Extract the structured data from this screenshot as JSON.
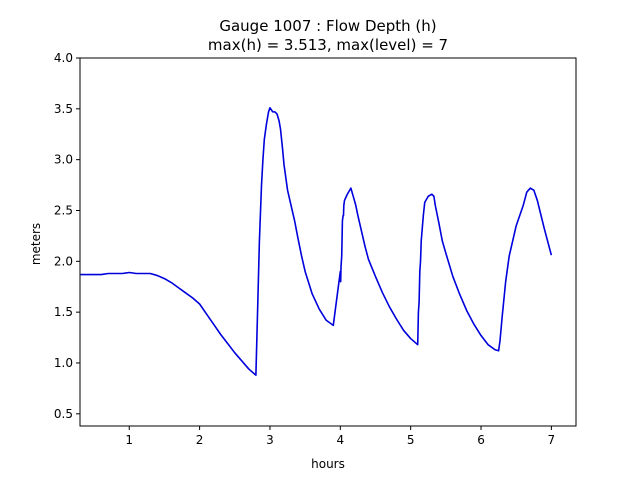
{
  "chart_data": {
    "type": "line",
    "title_lines": [
      "Gauge 1007 : Flow Depth (h)",
      "max(h) =   3.513,    max(level) = 7"
    ],
    "xlabel": "hours",
    "ylabel": "meters",
    "xlim": [
      0.3,
      7.35
    ],
    "ylim": [
      0.38,
      4.0
    ],
    "xticks": [
      1,
      2,
      3,
      4,
      5,
      6,
      7
    ],
    "yticks": [
      0.5,
      1.0,
      1.5,
      2.0,
      2.5,
      3.0,
      3.5,
      4.0
    ],
    "ytick_labels": [
      "0.5",
      "1.0",
      "1.5",
      "2.0",
      "2.5",
      "3.0",
      "3.5",
      "4.0"
    ],
    "grid": false,
    "colors": {
      "series": "#0000dd"
    },
    "series": [
      {
        "x": [
          0.3,
          0.4,
          0.5,
          0.6,
          0.7,
          0.8,
          0.9,
          1.0,
          1.1,
          1.2,
          1.3,
          1.4,
          1.5,
          1.6,
          1.7,
          1.8,
          1.9,
          2.0,
          2.1,
          2.2,
          2.3,
          2.4,
          2.5,
          2.6,
          2.7,
          2.8,
          2.82,
          2.85,
          2.88,
          2.9,
          2.92,
          2.95,
          2.98,
          3.0,
          3.04,
          3.07,
          3.1,
          3.13,
          3.15,
          3.18,
          3.2,
          3.25,
          3.3,
          3.35,
          3.4,
          3.45,
          3.5,
          3.6,
          3.7,
          3.8,
          3.9,
          4.0,
          4.005,
          4.01,
          4.02,
          4.03,
          4.04,
          4.045,
          4.05,
          4.06,
          4.08,
          4.1,
          4.15,
          4.2,
          4.22,
          4.25,
          4.3,
          4.35,
          4.4,
          4.5,
          4.6,
          4.7,
          4.8,
          4.9,
          5.0,
          5.1,
          5.11,
          5.12,
          5.13,
          5.14,
          5.15,
          5.18,
          5.2,
          5.25,
          5.3,
          5.33,
          5.35,
          5.4,
          5.45,
          5.5,
          5.6,
          5.7,
          5.8,
          5.9,
          6.0,
          6.1,
          6.2,
          6.25,
          6.27,
          6.3,
          6.35,
          6.4,
          6.5,
          6.6,
          6.65,
          6.7,
          6.75,
          6.8,
          6.9,
          7.0
        ],
        "y": [
          1.87,
          1.87,
          1.87,
          1.87,
          1.88,
          1.88,
          1.88,
          1.89,
          1.88,
          1.88,
          1.88,
          1.86,
          1.83,
          1.79,
          1.74,
          1.69,
          1.64,
          1.58,
          1.48,
          1.38,
          1.28,
          1.19,
          1.1,
          1.02,
          0.94,
          0.88,
          1.4,
          2.2,
          2.75,
          3.0,
          3.2,
          3.35,
          3.47,
          3.51,
          3.47,
          3.47,
          3.45,
          3.38,
          3.3,
          3.1,
          2.95,
          2.7,
          2.55,
          2.4,
          2.22,
          2.05,
          1.9,
          1.68,
          1.53,
          1.42,
          1.37,
          1.9,
          1.8,
          1.95,
          2.05,
          2.4,
          2.45,
          2.45,
          2.55,
          2.6,
          2.63,
          2.66,
          2.72,
          2.6,
          2.55,
          2.45,
          2.3,
          2.15,
          2.02,
          1.85,
          1.69,
          1.55,
          1.43,
          1.32,
          1.24,
          1.18,
          1.5,
          1.6,
          1.9,
          2.0,
          2.2,
          2.45,
          2.58,
          2.64,
          2.66,
          2.64,
          2.55,
          2.38,
          2.2,
          2.08,
          1.85,
          1.67,
          1.51,
          1.38,
          1.27,
          1.18,
          1.13,
          1.12,
          1.22,
          1.45,
          1.8,
          2.05,
          2.35,
          2.55,
          2.68,
          2.72,
          2.7,
          2.6,
          2.32,
          2.06
        ]
      }
    ]
  }
}
